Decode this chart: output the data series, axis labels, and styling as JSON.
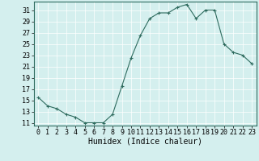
{
  "x": [
    0,
    1,
    2,
    3,
    4,
    5,
    6,
    7,
    8,
    9,
    10,
    11,
    12,
    13,
    14,
    15,
    16,
    17,
    18,
    19,
    20,
    21,
    22,
    23
  ],
  "y": [
    15.5,
    14.0,
    13.5,
    12.5,
    12.0,
    11.0,
    11.0,
    11.0,
    12.5,
    17.5,
    22.5,
    26.5,
    29.5,
    30.5,
    30.5,
    31.5,
    32.0,
    29.5,
    31.0,
    31.0,
    25.0,
    23.5,
    23.0,
    21.5
  ],
  "line_color": "#2e6b5e",
  "marker": "+",
  "marker_size": 3,
  "xlabel": "Humidex (Indice chaleur)",
  "bg_color": "#d4efee",
  "grid_color": "#ffffff",
  "axis_color": "#2e6b5e",
  "xlim": [
    -0.5,
    23.5
  ],
  "ylim": [
    10.5,
    32.5
  ],
  "yticks": [
    11,
    13,
    15,
    17,
    19,
    21,
    23,
    25,
    27,
    29,
    31
  ],
  "xtick_labels": [
    "0",
    "1",
    "2",
    "3",
    "4",
    "5",
    "6",
    "7",
    "8",
    "9",
    "10",
    "11",
    "12",
    "13",
    "14",
    "15",
    "16",
    "17",
    "18",
    "19",
    "20",
    "21",
    "22",
    "23"
  ],
  "xlabel_fontsize": 7,
  "tick_fontsize": 6
}
